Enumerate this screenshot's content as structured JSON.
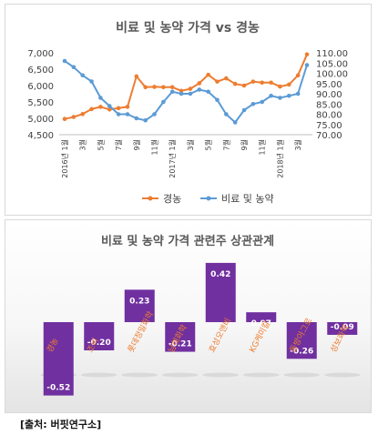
{
  "chart_data": [
    {
      "type": "line",
      "title": "비료 및 농약 가격 vs 경농",
      "x": [
        "2016년 1월",
        "2",
        "3",
        "4",
        "5",
        "6",
        "7",
        "8",
        "9",
        "10",
        "11",
        "12",
        "2017년 1월",
        "2",
        "3",
        "4",
        "5",
        "6",
        "7",
        "8",
        "9",
        "10",
        "11",
        "12",
        "2018년 1월",
        "2",
        "3",
        "4"
      ],
      "x_tick_labels": [
        "2016년 1월",
        "3월",
        "5월",
        "7월",
        "9월",
        "11월",
        "2017년 1월",
        "3월",
        "5월",
        "7월",
        "9월",
        "11월",
        "2018년 1월",
        "3월"
      ],
      "y_left_ticks": [
        "4,500",
        "5,000",
        "5,500",
        "6,000",
        "6,500",
        "7,000"
      ],
      "y_right_ticks": [
        "70.00",
        "75.00",
        "80.00",
        "85.00",
        "90.00",
        "95.00",
        "100.00",
        "105.00",
        "110.00"
      ],
      "ylim_left": [
        4500,
        7000
      ],
      "ylim_right": [
        70,
        110
      ],
      "series": [
        {
          "name": "경농",
          "axis": "left",
          "color": "#ed7d31",
          "values": [
            4980,
            5040,
            5130,
            5280,
            5350,
            5270,
            5310,
            5350,
            6280,
            5950,
            5960,
            5950,
            5950,
            5840,
            5900,
            6070,
            6330,
            6120,
            6220,
            6050,
            6000,
            6120,
            6090,
            6090,
            5970,
            6030,
            6310,
            6950
          ]
        },
        {
          "name": "비료 및 농약",
          "axis": "right",
          "color": "#5b9bd5",
          "values": [
            106,
            103,
            99,
            96,
            88,
            84,
            80,
            80,
            78,
            77,
            80,
            86,
            91,
            90,
            90,
            92,
            91,
            87,
            80,
            76,
            82,
            85,
            86,
            89,
            88,
            89,
            90,
            104
          ]
        }
      ],
      "legend": "bottom"
    },
    {
      "type": "bar",
      "title": "비료 및 농약 가격 관련주 상관관계",
      "categories": [
        "경농",
        "조비",
        "롯데정밀화학",
        "남해화학",
        "효성오앤비",
        "KG케미칼",
        "동방아그로",
        "성보화학"
      ],
      "values": [
        -0.52,
        -0.2,
        0.23,
        -0.21,
        0.42,
        0.07,
        -0.26,
        -0.09
      ],
      "value_labels": [
        "-0.52",
        "-0.20",
        "0.23",
        "-0.21",
        "0.42",
        "0.07",
        "-0.26",
        "-0.09"
      ],
      "color": "#7030a0",
      "category_label_color": "#ed7d31"
    }
  ],
  "source": "[출처: 버핏연구소]"
}
